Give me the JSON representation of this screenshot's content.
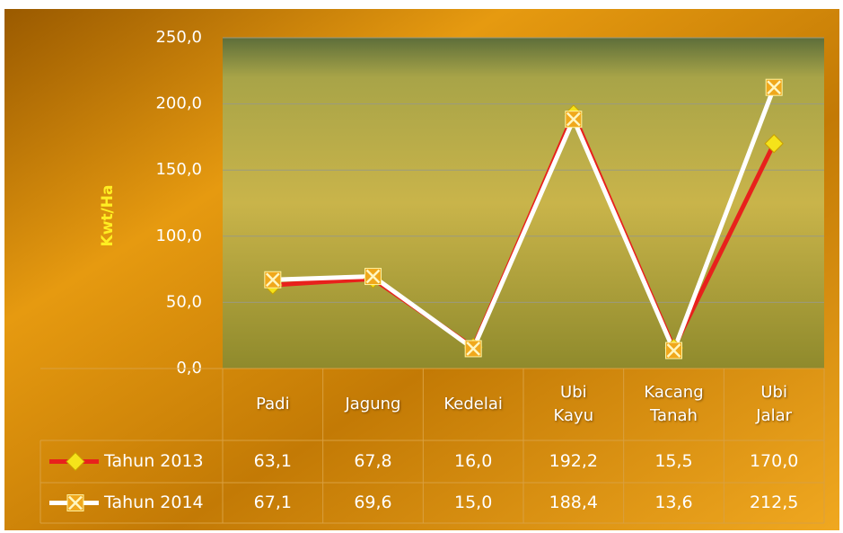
{
  "chart_data": {
    "type": "line",
    "y_label": "Kwt/Ha",
    "categories": [
      "Padi",
      "Jagung",
      "Kedelai",
      "Ubi Kayu",
      "Kacang Tanah",
      "Ubi Jalar"
    ],
    "series": [
      {
        "name": "Tahun 2013",
        "color": "#e8211c",
        "marker_color": "#f5e31a",
        "values": [
          63.1,
          67.8,
          16.0,
          192.2,
          15.5,
          170.0
        ],
        "value_labels": [
          "63,1",
          "67,8",
          "16,0",
          "192,2",
          "15,5",
          "170,0"
        ]
      },
      {
        "name": "Tahun 2014",
        "color": "#ffffff",
        "marker_color": "#f0a81c",
        "values": [
          67.1,
          69.6,
          15.0,
          188.4,
          13.6,
          212.5
        ],
        "value_labels": [
          "67,1",
          "69,6",
          "15,0",
          "188,4",
          "13,6",
          "212,5"
        ]
      }
    ],
    "ylim": [
      0,
      250
    ],
    "yticks": [
      {
        "value": 0,
        "label": "0,0"
      },
      {
        "value": 50,
        "label": "50,0"
      },
      {
        "value": 100,
        "label": "100,0"
      },
      {
        "value": 150,
        "label": "150,0"
      },
      {
        "value": 200,
        "label": "200,0"
      },
      {
        "value": 250,
        "label": "250,0"
      }
    ],
    "grid": true
  }
}
